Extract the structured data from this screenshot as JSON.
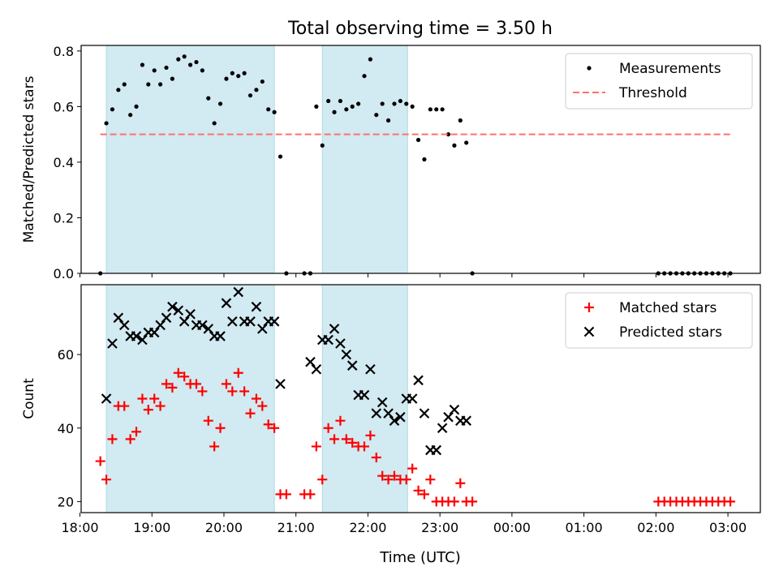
{
  "figure": {
    "title": "Total observing time = 3.50 h",
    "xlabel": "Time (UTC)"
  },
  "colors": {
    "shade": "#add8e6",
    "threshold": "#ff6f6f",
    "measurement": "#000000",
    "matched": "#ff0000",
    "predicted": "#000000"
  },
  "chart_data": [
    {
      "type": "scatter",
      "panel": "top",
      "ylabel": "Matched/Predicted stars",
      "ylim": [
        0,
        0.82
      ],
      "yticks": [
        0.0,
        0.2,
        0.4,
        0.6,
        0.8
      ],
      "ytick_labels": [
        "0.0",
        "0.2",
        "0.4",
        "0.6",
        "0.8"
      ],
      "xlim": [
        "18:01",
        "03:27"
      ],
      "xticks": [
        "18:00",
        "19:00",
        "20:00",
        "21:00",
        "22:00",
        "23:00",
        "00:00",
        "01:00",
        "02:00",
        "03:00"
      ],
      "shaded_intervals": [
        [
          "18:22",
          "20:42"
        ],
        [
          "21:22",
          "22:33"
        ]
      ],
      "legend_position": "upper right",
      "series": [
        {
          "name": "Measurements",
          "kind": "points",
          "x": [
            "18:17",
            "18:22",
            "18:27",
            "18:32",
            "18:37",
            "18:42",
            "18:47",
            "18:52",
            "18:57",
            "19:02",
            "19:07",
            "19:12",
            "19:17",
            "19:22",
            "19:27",
            "19:32",
            "19:37",
            "19:42",
            "19:47",
            "19:52",
            "19:57",
            "20:02",
            "20:07",
            "20:12",
            "20:17",
            "20:22",
            "20:27",
            "20:32",
            "20:37",
            "20:42",
            "20:47",
            "20:52",
            "21:07",
            "21:12",
            "21:17",
            "21:22",
            "21:27",
            "21:32",
            "21:37",
            "21:42",
            "21:47",
            "21:52",
            "21:57",
            "22:02",
            "22:07",
            "22:12",
            "22:17",
            "22:22",
            "22:27",
            "22:32",
            "22:37",
            "22:42",
            "22:47",
            "22:52",
            "22:57",
            "23:02",
            "23:07",
            "23:12",
            "23:17",
            "23:22",
            "23:27",
            "02:02",
            "02:07",
            "02:12",
            "02:17",
            "02:22",
            "02:27",
            "02:32",
            "02:37",
            "02:42",
            "02:47",
            "02:52",
            "02:57",
            "03:02"
          ],
          "y": [
            0.0,
            0.54,
            0.59,
            0.66,
            0.68,
            0.57,
            0.6,
            0.75,
            0.68,
            0.73,
            0.68,
            0.74,
            0.7,
            0.77,
            0.78,
            0.75,
            0.76,
            0.73,
            0.63,
            0.54,
            0.61,
            0.7,
            0.72,
            0.71,
            0.72,
            0.64,
            0.66,
            0.69,
            0.59,
            0.58,
            0.42,
            0.0,
            0.0,
            0.0,
            0.6,
            0.46,
            0.62,
            0.58,
            0.62,
            0.59,
            0.6,
            0.61,
            0.71,
            0.77,
            0.57,
            0.61,
            0.55,
            0.61,
            0.62,
            0.61,
            0.6,
            0.48,
            0.41,
            0.59,
            0.59,
            0.59,
            0.5,
            0.46,
            0.55,
            0.47,
            0.0,
            0.0,
            0.0,
            0.0,
            0.0,
            0.0,
            0.0,
            0.0,
            0.0,
            0.0,
            0.0,
            0.0,
            0.0,
            0.0
          ]
        },
        {
          "name": "Threshold",
          "kind": "dashed-line",
          "x": [
            "18:17",
            "03:02"
          ],
          "y": [
            0.5,
            0.5
          ]
        }
      ]
    },
    {
      "type": "scatter",
      "panel": "bottom",
      "ylabel": "Count",
      "ylim": [
        17,
        79
      ],
      "yticks": [
        20,
        40,
        60
      ],
      "ytick_labels": [
        "20",
        "40",
        "60"
      ],
      "xlim": [
        "18:01",
        "03:27"
      ],
      "xticks": [
        "18:00",
        "19:00",
        "20:00",
        "21:00",
        "22:00",
        "23:00",
        "00:00",
        "01:00",
        "02:00",
        "03:00"
      ],
      "xtick_labels": [
        "18:00",
        "19:00",
        "20:00",
        "21:00",
        "22:00",
        "23:00",
        "00:00",
        "01:00",
        "02:00",
        "03:00"
      ],
      "shaded_intervals": [
        [
          "18:22",
          "20:42"
        ],
        [
          "21:22",
          "22:33"
        ]
      ],
      "legend_position": "upper right",
      "series": [
        {
          "name": "Matched stars",
          "marker": "plus",
          "x": [
            "18:17",
            "18:22",
            "18:27",
            "18:32",
            "18:37",
            "18:42",
            "18:47",
            "18:52",
            "18:57",
            "19:02",
            "19:07",
            "19:12",
            "19:17",
            "19:22",
            "19:27",
            "19:32",
            "19:37",
            "19:42",
            "19:47",
            "19:52",
            "19:57",
            "20:02",
            "20:07",
            "20:12",
            "20:17",
            "20:22",
            "20:27",
            "20:32",
            "20:37",
            "20:42",
            "20:47",
            "20:52",
            "21:07",
            "21:12",
            "21:17",
            "21:22",
            "21:27",
            "21:32",
            "21:37",
            "21:42",
            "21:47",
            "21:52",
            "21:57",
            "22:02",
            "22:07",
            "22:12",
            "22:17",
            "22:22",
            "22:27",
            "22:32",
            "22:37",
            "22:42",
            "22:47",
            "22:52",
            "22:57",
            "23:02",
            "23:07",
            "23:12",
            "23:17",
            "23:22",
            "23:27",
            "02:02",
            "02:07",
            "02:12",
            "02:17",
            "02:22",
            "02:27",
            "02:32",
            "02:37",
            "02:42",
            "02:47",
            "02:52",
            "02:57",
            "03:02"
          ],
          "y": [
            31,
            26,
            37,
            46,
            46,
            37,
            39,
            48,
            45,
            48,
            46,
            52,
            51,
            55,
            54,
            52,
            52,
            50,
            42,
            35,
            40,
            52,
            50,
            55,
            50,
            44,
            48,
            46,
            41,
            40,
            22,
            22,
            22,
            22,
            35,
            26,
            40,
            37,
            42,
            37,
            36,
            35,
            35,
            38,
            32,
            27,
            26,
            27,
            26,
            26,
            29,
            23,
            22,
            26,
            20,
            20,
            20,
            20,
            25,
            20,
            20,
            20,
            20,
            20,
            20,
            20,
            20,
            20,
            20,
            20,
            20,
            20,
            20,
            20
          ]
        },
        {
          "name": "Predicted stars",
          "marker": "x",
          "x": [
            "18:22",
            "18:27",
            "18:32",
            "18:37",
            "18:42",
            "18:47",
            "18:52",
            "18:57",
            "19:02",
            "19:07",
            "19:12",
            "19:17",
            "19:22",
            "19:27",
            "19:32",
            "19:37",
            "19:42",
            "19:47",
            "19:52",
            "19:57",
            "20:02",
            "20:07",
            "20:12",
            "20:17",
            "20:22",
            "20:27",
            "20:32",
            "20:37",
            "20:42",
            "20:47",
            "21:12",
            "21:17",
            "21:22",
            "21:27",
            "21:32",
            "21:37",
            "21:42",
            "21:47",
            "21:52",
            "21:57",
            "22:02",
            "22:07",
            "22:12",
            "22:17",
            "22:22",
            "22:27",
            "22:32",
            "22:37",
            "22:42",
            "22:47",
            "22:52",
            "22:57",
            "23:02",
            "23:07",
            "23:12",
            "23:17",
            "23:22"
          ],
          "y": [
            48,
            63,
            70,
            68,
            65,
            65,
            64,
            66,
            66,
            68,
            70,
            73,
            72,
            69,
            71,
            68,
            68,
            67,
            65,
            65,
            74,
            69,
            77,
            69,
            69,
            73,
            67,
            69,
            69,
            52,
            58,
            56,
            64,
            64,
            67,
            63,
            60,
            57,
            49,
            49,
            56,
            44,
            47,
            44,
            42,
            43,
            48,
            48,
            53,
            44,
            34,
            34,
            40,
            43,
            45,
            42,
            42
          ]
        }
      ]
    }
  ]
}
